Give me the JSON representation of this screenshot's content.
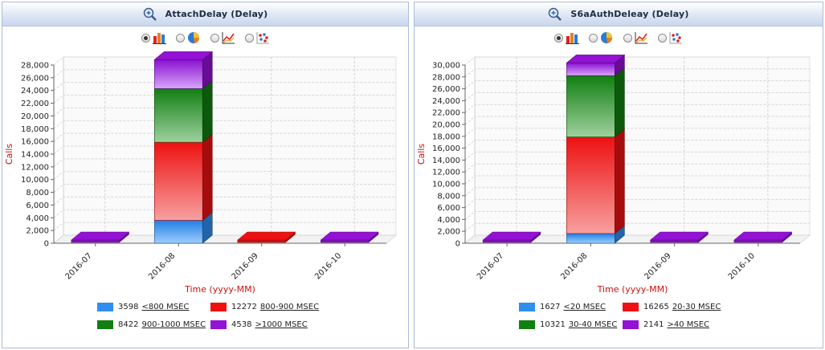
{
  "panels": [
    {
      "title": "AttachDelay (Delay)",
      "legend": [
        {
          "count": "3598",
          "label": "<800 MSEC"
        },
        {
          "count": "12272",
          "label": "800-900 MSEC"
        },
        {
          "count": "8422",
          "label": "900-1000 MSEC"
        },
        {
          "count": "4538",
          "label": ">1000 MSEC"
        }
      ]
    },
    {
      "title": "S6aAuthDeleay (Delay)",
      "legend": [
        {
          "count": "1627",
          "label": "<20 MSEC"
        },
        {
          "count": "16265",
          "label": "20-30 MSEC"
        },
        {
          "count": "10321",
          "label": "30-40 MSEC"
        },
        {
          "count": "2141",
          "label": ">40 MSEC"
        }
      ]
    }
  ],
  "colors": {
    "s1": "#2f8fee",
    "s2": "#ee1111",
    "s3": "#117f11",
    "s4": "#9411d6",
    "axis_title": "#cc1111"
  },
  "icons": [
    "zoom-icon",
    "bar-3d-icon",
    "pie-icon",
    "line-icon",
    "scatter-icon"
  ],
  "chart_data": [
    {
      "type": "bar",
      "stacked": true,
      "title": "AttachDelay (Delay)",
      "xlabel": "Time (yyyy-MM)",
      "ylabel": "Calls",
      "categories": [
        "2016-07",
        "2016-08",
        "2016-09",
        "2016-10"
      ],
      "ylim": [
        0,
        28000
      ],
      "yticks": [
        0,
        2000,
        4000,
        6000,
        8000,
        10000,
        12000,
        14000,
        16000,
        18000,
        20000,
        22000,
        24000,
        26000,
        28000
      ],
      "ytick_labels": [
        "0",
        "2,000",
        "4,000",
        "6,000",
        "8,000",
        "10,000",
        "12,000",
        "14,000",
        "16,000",
        "18,000",
        "20,000",
        "22,000",
        "24,000",
        "26,000",
        "28,000"
      ],
      "series": [
        {
          "name": "<800 MSEC",
          "values": [
            0,
            3598,
            0,
            0
          ]
        },
        {
          "name": "800-900 MSEC",
          "values": [
            0,
            12272,
            0,
            0
          ]
        },
        {
          "name": "900-1000 MSEC",
          "values": [
            0,
            8422,
            0,
            0
          ]
        },
        {
          "name": ">1000 MSEC",
          "values": [
            0,
            4538,
            0,
            0
          ]
        }
      ],
      "flat_markers": [
        "s4",
        null,
        "s2",
        "s4"
      ],
      "grid": true,
      "legend_position": "bottom"
    },
    {
      "type": "bar",
      "stacked": true,
      "title": "S6aAuthDeleay (Delay)",
      "xlabel": "Time (yyyy-MM)",
      "ylabel": "Calls",
      "categories": [
        "2016-07",
        "2016-08",
        "2016-09",
        "2016-10"
      ],
      "ylim": [
        0,
        30000
      ],
      "yticks": [
        0,
        2000,
        4000,
        6000,
        8000,
        10000,
        12000,
        14000,
        16000,
        18000,
        20000,
        22000,
        24000,
        26000,
        28000,
        30000
      ],
      "ytick_labels": [
        "0",
        "2,000",
        "4,000",
        "6,000",
        "8,000",
        "10,000",
        "12,000",
        "14,000",
        "16,000",
        "18,000",
        "20,000",
        "22,000",
        "24,000",
        "26,000",
        "28,000",
        "30,000"
      ],
      "series": [
        {
          "name": "<20 MSEC",
          "values": [
            0,
            1627,
            0,
            0
          ]
        },
        {
          "name": "20-30 MSEC",
          "values": [
            0,
            16265,
            0,
            0
          ]
        },
        {
          "name": "30-40 MSEC",
          "values": [
            0,
            10321,
            0,
            0
          ]
        },
        {
          "name": ">40 MSEC",
          "values": [
            0,
            2141,
            0,
            0
          ]
        }
      ],
      "flat_markers": [
        "s4",
        null,
        "s4",
        "s4"
      ],
      "grid": true,
      "legend_position": "bottom"
    }
  ]
}
